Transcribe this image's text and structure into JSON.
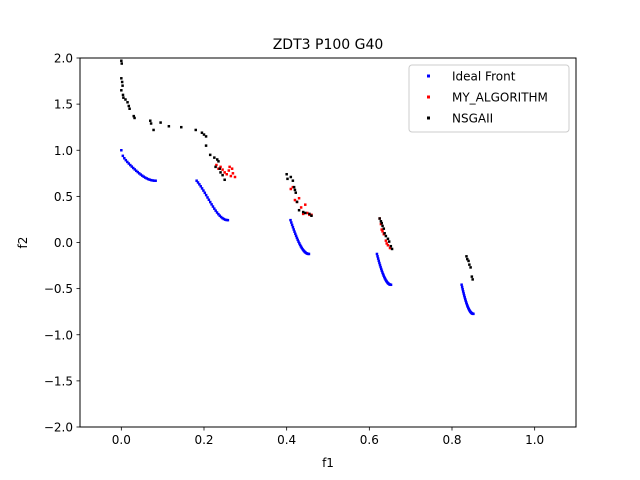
{
  "chart_data": {
    "type": "scatter",
    "title": "ZDT3 P100 G40",
    "xlabel": "f1",
    "ylabel": "f2",
    "xlim": [
      -0.1,
      1.1
    ],
    "ylim": [
      -2.0,
      2.0
    ],
    "xticks": [
      0.0,
      0.2,
      0.4,
      0.6,
      0.8,
      1.0
    ],
    "xtick_labels": [
      "0.0",
      "0.2",
      "0.4",
      "0.6",
      "0.8",
      "1.0"
    ],
    "yticks": [
      -2.0,
      -1.5,
      -1.0,
      -0.5,
      0.0,
      0.5,
      1.0,
      1.5,
      2.0
    ],
    "ytick_labels": [
      "−2.0",
      "−1.5",
      "−1.0",
      "−0.5",
      "0.0",
      "0.5",
      "1.0",
      "1.5",
      "2.0"
    ],
    "grid": false,
    "legend_position": "top-right",
    "series": [
      {
        "name": "Ideal Front",
        "color": "#0000ff",
        "segments": [
          {
            "x_start": 0.0,
            "x_end": 0.083,
            "samples": 24
          },
          {
            "x_start": 0.1822,
            "x_end": 0.2578,
            "samples": 24
          },
          {
            "x_start": 0.4093,
            "x_end": 0.4539,
            "samples": 24
          },
          {
            "x_start": 0.6184,
            "x_end": 0.6525,
            "samples": 24
          },
          {
            "x_start": 0.8233,
            "x_end": 0.8518,
            "samples": 24
          }
        ]
      },
      {
        "name": "MY_ALGORITHM",
        "color": "#ff0000",
        "points": [
          [
            0.23,
            0.84
          ],
          [
            0.235,
            0.8
          ],
          [
            0.24,
            0.82
          ],
          [
            0.245,
            0.79
          ],
          [
            0.25,
            0.76
          ],
          [
            0.255,
            0.74
          ],
          [
            0.26,
            0.78
          ],
          [
            0.262,
            0.82
          ],
          [
            0.265,
            0.72
          ],
          [
            0.27,
            0.75
          ],
          [
            0.275,
            0.71
          ],
          [
            0.268,
            0.8
          ],
          [
            0.41,
            0.58
          ],
          [
            0.415,
            0.6
          ],
          [
            0.42,
            0.46
          ],
          [
            0.425,
            0.44
          ],
          [
            0.43,
            0.48
          ],
          [
            0.435,
            0.38
          ],
          [
            0.44,
            0.31
          ],
          [
            0.445,
            0.41
          ],
          [
            0.45,
            0.32
          ],
          [
            0.455,
            0.3
          ],
          [
            0.46,
            0.3
          ],
          [
            0.625,
            0.26
          ],
          [
            0.628,
            0.2
          ],
          [
            0.63,
            0.14
          ],
          [
            0.632,
            0.12
          ],
          [
            0.635,
            0.09
          ],
          [
            0.64,
            0.02
          ],
          [
            0.642,
            -0.01
          ],
          [
            0.645,
            -0.03
          ],
          [
            0.65,
            -0.06
          ]
        ]
      },
      {
        "name": "NSGAII",
        "color": "#000000",
        "points": [
          [
            0.0,
            1.97
          ],
          [
            0.001,
            1.94
          ],
          [
            0.0,
            1.78
          ],
          [
            0.002,
            1.74
          ],
          [
            0.003,
            1.7
          ],
          [
            0.0,
            1.65
          ],
          [
            0.004,
            1.6
          ],
          [
            0.005,
            1.57
          ],
          [
            0.01,
            1.55
          ],
          [
            0.015,
            1.52
          ],
          [
            0.018,
            1.48
          ],
          [
            0.02,
            1.45
          ],
          [
            0.03,
            1.37
          ],
          [
            0.032,
            1.35
          ],
          [
            0.07,
            1.32
          ],
          [
            0.072,
            1.29
          ],
          [
            0.078,
            1.22
          ],
          [
            0.095,
            1.3
          ],
          [
            0.115,
            1.26
          ],
          [
            0.145,
            1.25
          ],
          [
            0.18,
            1.22
          ],
          [
            0.195,
            1.19
          ],
          [
            0.2,
            1.17
          ],
          [
            0.205,
            1.15
          ],
          [
            0.205,
            1.05
          ],
          [
            0.215,
            0.95
          ],
          [
            0.225,
            0.92
          ],
          [
            0.232,
            0.9
          ],
          [
            0.235,
            0.88
          ],
          [
            0.228,
            0.82
          ],
          [
            0.238,
            0.8
          ],
          [
            0.24,
            0.76
          ],
          [
            0.245,
            0.73
          ],
          [
            0.25,
            0.68
          ],
          [
            0.4,
            0.74
          ],
          [
            0.402,
            0.69
          ],
          [
            0.41,
            0.71
          ],
          [
            0.415,
            0.67
          ],
          [
            0.418,
            0.6
          ],
          [
            0.42,
            0.57
          ],
          [
            0.422,
            0.54
          ],
          [
            0.425,
            0.44
          ],
          [
            0.43,
            0.35
          ],
          [
            0.44,
            0.33
          ],
          [
            0.445,
            0.32
          ],
          [
            0.455,
            0.31
          ],
          [
            0.46,
            0.29
          ],
          [
            0.625,
            0.26
          ],
          [
            0.628,
            0.23
          ],
          [
            0.63,
            0.21
          ],
          [
            0.632,
            0.18
          ],
          [
            0.635,
            0.15
          ],
          [
            0.637,
            0.1
          ],
          [
            0.64,
            0.07
          ],
          [
            0.645,
            0.04
          ],
          [
            0.648,
            0.01
          ],
          [
            0.652,
            -0.04
          ],
          [
            0.655,
            -0.07
          ],
          [
            0.835,
            -0.15
          ],
          [
            0.837,
            -0.18
          ],
          [
            0.84,
            -0.2
          ],
          [
            0.842,
            -0.24
          ],
          [
            0.845,
            -0.27
          ],
          [
            0.848,
            -0.37
          ],
          [
            0.85,
            -0.4
          ]
        ]
      }
    ]
  }
}
